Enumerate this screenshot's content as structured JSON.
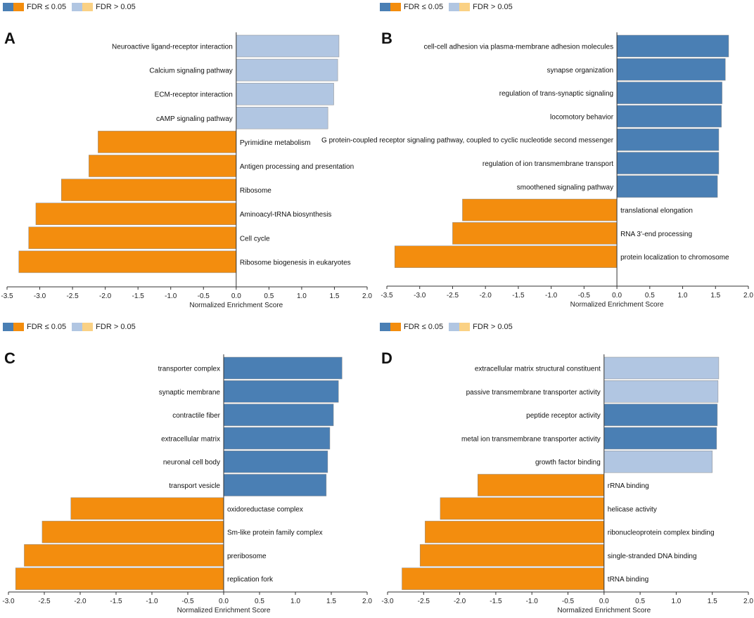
{
  "colors": {
    "up_sig": "#4a7fb4",
    "down_sig": "#f38d0e",
    "up_nonsig": "#b1c6e2",
    "down_nonsig": "#fad184",
    "axis": "#333333"
  },
  "legend": {
    "sig_label": "FDR ≤ 0.05",
    "nonsig_label": "FDR > 0.05"
  },
  "panels": [
    {
      "letter": "A",
      "xlabel": "Normalized Enrichment Score",
      "ticks": [
        "-3.5",
        "-3.0",
        "-2.5",
        "-2.0",
        "-1.5",
        "-1.0",
        "-0.5",
        "0.0",
        "0.5",
        "1.0",
        "1.5",
        "2.0"
      ]
    },
    {
      "letter": "B",
      "xlabel": "Normalized Enrichment Score",
      "ticks": [
        "-3.5",
        "-3.0",
        "-2.5",
        "-2.0",
        "-1.5",
        "-1.0",
        "-0.5",
        "0.0",
        "0.5",
        "1.0",
        "1.5",
        "2.0"
      ]
    },
    {
      "letter": "C",
      "xlabel": "Normalized Enrichment Score",
      "ticks": [
        "-3.0",
        "-2.5",
        "-2.0",
        "-1.5",
        "-1.0",
        "-0.5",
        "0.0",
        "0.5",
        "1.0",
        "1.5",
        "2.0"
      ]
    },
    {
      "letter": "D",
      "xlabel": "Normalized Enrichment Score",
      "ticks": [
        "-3.0",
        "-2.5",
        "-2.0",
        "-1.5",
        "-1.0",
        "-0.5",
        "0.0",
        "0.5",
        "1.0",
        "1.5",
        "2.0"
      ]
    }
  ],
  "chart_data": [
    {
      "type": "bar",
      "orientation": "horizontal",
      "panel": "A",
      "xlabel": "Normalized Enrichment Score",
      "xlim": [
        -3.5,
        2.0
      ],
      "categories": [
        "Neuroactive ligand-receptor interaction",
        "Calcium signaling pathway",
        "ECM-receptor interaction",
        "cAMP signaling pathway",
        "Pyrimidine metabolism",
        "Antigen processing and presentation",
        "Ribosome",
        "Aminoacyl-tRNA biosynthesis",
        "Cell cycle",
        "Ribosome biogenesis in eukaryotes"
      ],
      "values": [
        1.57,
        1.55,
        1.49,
        1.4,
        -2.11,
        -2.25,
        -2.67,
        -3.06,
        -3.17,
        -3.32
      ],
      "significant": [
        false,
        false,
        false,
        false,
        true,
        true,
        true,
        true,
        true,
        true
      ]
    },
    {
      "type": "bar",
      "orientation": "horizontal",
      "panel": "B",
      "xlabel": "Normalized Enrichment Score",
      "xlim": [
        -3.5,
        2.0
      ],
      "categories": [
        "cell-cell adhesion via plasma-membrane adhesion molecules",
        "synapse organization",
        "regulation of trans-synaptic signaling",
        "locomotory behavior",
        "G protein-coupled receptor signaling pathway, coupled to cyclic nucleotide second messenger",
        "regulation of ion transmembrane transport",
        "smoothened signaling pathway",
        "translational elongation",
        "RNA 3'-end processing",
        "protein localization to chromosome"
      ],
      "values": [
        1.7,
        1.65,
        1.6,
        1.59,
        1.55,
        1.55,
        1.53,
        -2.35,
        -2.5,
        -3.38
      ],
      "significant": [
        true,
        true,
        true,
        true,
        true,
        true,
        true,
        true,
        true,
        true
      ]
    },
    {
      "type": "bar",
      "orientation": "horizontal",
      "panel": "C",
      "xlabel": "Normalized Enrichment Score",
      "xlim": [
        -3.0,
        2.0
      ],
      "categories": [
        "transporter complex",
        "synaptic membrane",
        "contractile fiber",
        "extracellular matrix",
        "neuronal cell body",
        "transport vesicle",
        "oxidoreductase complex",
        "Sm-like protein family complex",
        "preribosome",
        "replication fork"
      ],
      "values": [
        1.65,
        1.6,
        1.53,
        1.48,
        1.45,
        1.43,
        -2.13,
        -2.53,
        -2.78,
        -2.9
      ],
      "significant": [
        true,
        true,
        true,
        true,
        true,
        true,
        true,
        true,
        true,
        true
      ]
    },
    {
      "type": "bar",
      "orientation": "horizontal",
      "panel": "D",
      "xlabel": "Normalized Enrichment Score",
      "xlim": [
        -3.0,
        2.0
      ],
      "categories": [
        "extracellular matrix structural constituent",
        "passive transmembrane transporter activity",
        "peptide receptor activity",
        "metal ion transmembrane transporter activity",
        "growth factor binding",
        "rRNA binding",
        "helicase activity",
        "ribonucleoprotein complex binding",
        "single-stranded DNA binding",
        "tRNA binding"
      ],
      "values": [
        1.59,
        1.58,
        1.57,
        1.56,
        1.5,
        -1.75,
        -2.27,
        -2.48,
        -2.55,
        -2.8
      ],
      "significant": [
        false,
        false,
        true,
        true,
        false,
        true,
        true,
        true,
        true,
        true
      ]
    }
  ]
}
